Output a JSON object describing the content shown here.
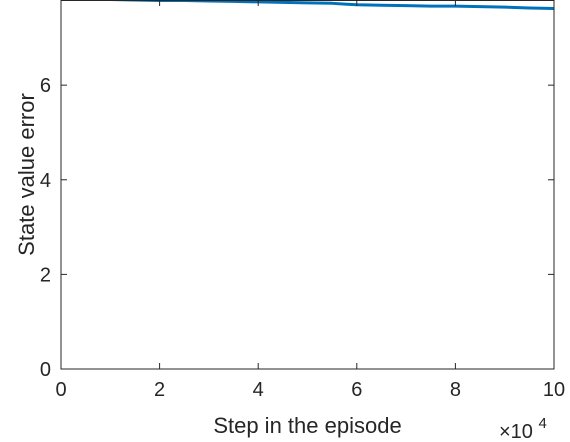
{
  "chart_data": {
    "type": "line",
    "title": "",
    "xlabel": "Step in the episode",
    "ylabel": "State value error",
    "x_multiplier_label": "×10",
    "x_multiplier_exponent": "4",
    "xlim": [
      0,
      10
    ],
    "ylim": [
      0,
      7.8
    ],
    "x_ticks": [
      0,
      2,
      4,
      6,
      8,
      10
    ],
    "x_tick_labels": [
      "0",
      "2",
      "4",
      "6",
      "8",
      "10"
    ],
    "y_ticks": [
      0,
      2,
      4,
      6
    ],
    "y_tick_labels": [
      "0",
      "2",
      "4",
      "6"
    ],
    "grid": false,
    "line_color": "#0072BD",
    "series": [
      {
        "x": [
          0,
          0.5,
          1,
          1.5,
          2,
          2.5,
          3,
          3.5,
          4,
          4.5,
          5,
          5.5,
          5.8,
          6,
          6.5,
          7,
          7.5,
          8,
          8.5,
          9,
          9.5,
          10
        ],
        "y": [
          7.82,
          7.81,
          7.81,
          7.8,
          7.79,
          7.79,
          7.78,
          7.77,
          7.76,
          7.75,
          7.74,
          7.73,
          7.71,
          7.7,
          7.69,
          7.68,
          7.67,
          7.67,
          7.66,
          7.65,
          7.63,
          7.62
        ]
      }
    ]
  }
}
